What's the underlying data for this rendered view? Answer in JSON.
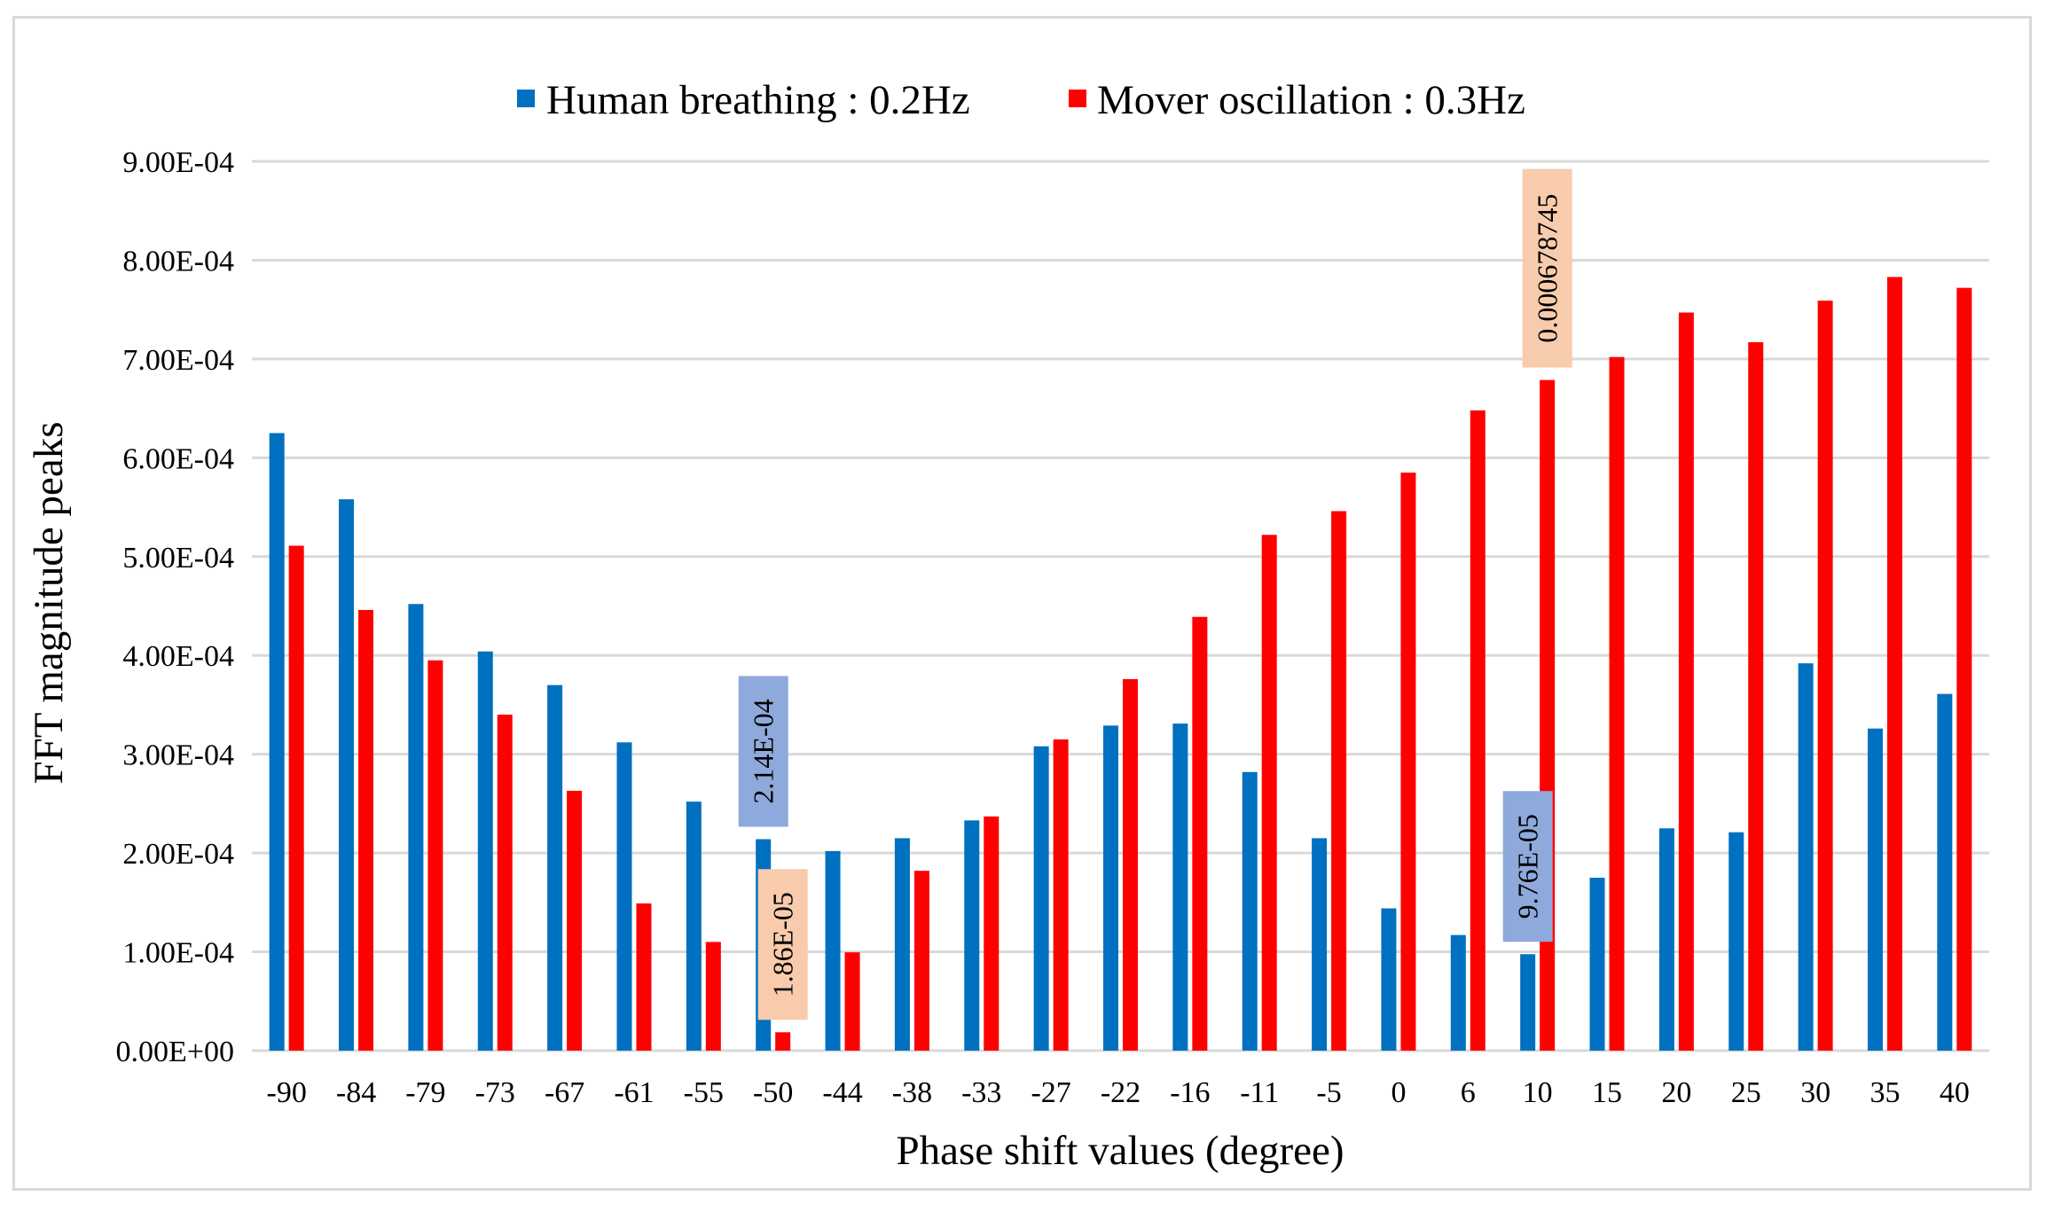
{
  "chart_data": {
    "type": "bar",
    "title": "",
    "xlabel": "Phase shift values (degree)",
    "ylabel": "FFT magnitude peaks",
    "ylim": [
      0,
      0.0009
    ],
    "yticks": [
      {
        "value": 0.0,
        "label": "0.00E+00"
      },
      {
        "value": 0.0001,
        "label": "1.00E-04"
      },
      {
        "value": 0.0002,
        "label": "2.00E-04"
      },
      {
        "value": 0.0003,
        "label": "3.00E-04"
      },
      {
        "value": 0.0004,
        "label": "4.00E-04"
      },
      {
        "value": 0.0005,
        "label": "5.00E-04"
      },
      {
        "value": 0.0006,
        "label": "6.00E-04"
      },
      {
        "value": 0.0007,
        "label": "7.00E-04"
      },
      {
        "value": 0.0008,
        "label": "8.00E-04"
      },
      {
        "value": 0.0009,
        "label": "9.00E-04"
      }
    ],
    "grid": true,
    "legend_position": "top-center",
    "categories": [
      "-90",
      "-84",
      "-79",
      "-73",
      "-67",
      "-61",
      "-55",
      "-50",
      "-44",
      "-38",
      "-33",
      "-27",
      "-22",
      "-16",
      "-11",
      "-5",
      "0",
      "6",
      "10",
      "15",
      "20",
      "25",
      "30",
      "35",
      "40"
    ],
    "series": [
      {
        "name": "Human breathing : 0.2Hz",
        "color": "#0070C0",
        "values": [
          0.000625,
          0.000558,
          0.000452,
          0.000404,
          0.00037,
          0.000312,
          0.000252,
          0.000214,
          0.000202,
          0.000215,
          0.000233,
          0.000308,
          0.000329,
          0.000331,
          0.000282,
          0.000215,
          0.000144,
          0.000117,
          9.76e-05,
          0.000175,
          0.000225,
          0.000221,
          0.000392,
          0.000326,
          0.000361
        ]
      },
      {
        "name": "Mover oscillation : 0.3Hz",
        "color": "#FF0000",
        "values": [
          0.000511,
          0.000446,
          0.000395,
          0.00034,
          0.000263,
          0.000149,
          0.00011,
          1.86e-05,
          9.95e-05,
          0.000182,
          0.000237,
          0.000315,
          0.000376,
          0.000439,
          0.000522,
          0.000546,
          0.000585,
          0.000648,
          0.000678745,
          0.000702,
          0.000747,
          0.000717,
          0.000759,
          0.000783,
          0.000772
        ]
      }
    ],
    "annotations": [
      {
        "text": "2.14E-04",
        "category": "-50",
        "series": 0,
        "value": 0.000214,
        "style": "blue"
      },
      {
        "text": "1.86E-05",
        "category": "-50",
        "series": 1,
        "value": 1.86e-05,
        "style": "orange"
      },
      {
        "text": "9.76E-05",
        "category": "10",
        "series": 0,
        "value": 9.76e-05,
        "style": "blue"
      },
      {
        "text": "0.000678745",
        "category": "10",
        "series": 1,
        "value": 0.000678745,
        "style": "orange"
      }
    ],
    "annotation_colors": {
      "blue": "#8EA9DB",
      "orange": "#F8CBAD"
    }
  }
}
